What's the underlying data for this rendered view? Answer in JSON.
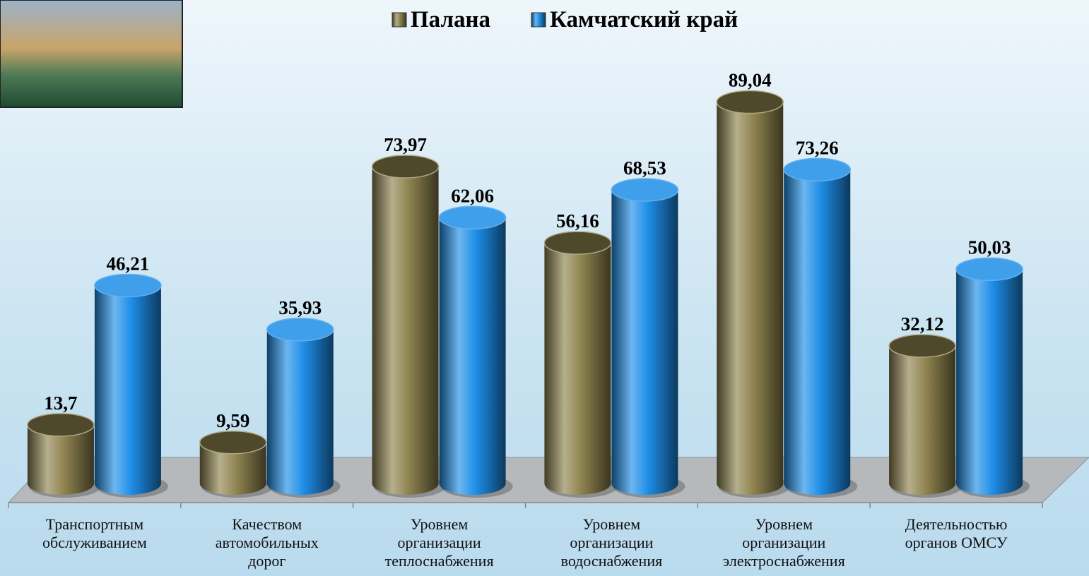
{
  "chart_data": {
    "type": "bar",
    "categories": [
      "Транспортным\nобслуживанием",
      "Качеством\nавтомобильных\nдорог",
      "Уровнем\nорганизации\nтеплоснабжения",
      "Уровнем\nорганизации\nводоснабжения",
      "Уровнем\nорганизации\nэлектроснабжения",
      "Деятельностью\nорганов ОМСУ"
    ],
    "series": [
      {
        "name": "Палана",
        "color": "#8f8450",
        "values": [
          13.7,
          9.59,
          73.97,
          56.16,
          89.04,
          32.12
        ],
        "value_labels": [
          "13,7",
          "9,59",
          "73,97",
          "56,16",
          "89,04",
          "32,12"
        ]
      },
      {
        "name": "Камчатский край",
        "color": "#1e8ee8",
        "values": [
          46.21,
          35.93,
          62.06,
          68.53,
          73.26,
          50.03
        ],
        "value_labels": [
          "46,21",
          "35,93",
          "62,06",
          "68,53",
          "73,26",
          "50,03"
        ]
      }
    ],
    "ylim": [
      0,
      100
    ],
    "legend": "top"
  }
}
